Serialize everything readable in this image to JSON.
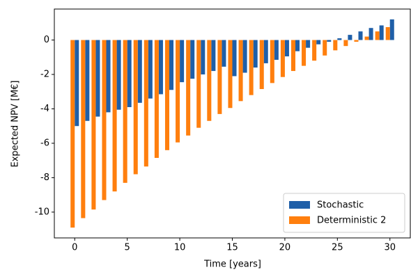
{
  "chart_data": {
    "type": "bar",
    "xlabel": "Time [years]",
    "ylabel": "Expected NPV [M€]",
    "x": [
      0,
      1,
      2,
      3,
      4,
      5,
      6,
      7,
      8,
      9,
      10,
      11,
      12,
      13,
      14,
      15,
      16,
      17,
      18,
      19,
      20,
      21,
      22,
      23,
      24,
      25,
      26,
      27,
      28,
      29,
      30
    ],
    "series": [
      {
        "name": "Stochastic",
        "color": "#1f5fa8",
        "values": [
          -5.0,
          -4.7,
          -4.45,
          -4.2,
          -4.05,
          -3.9,
          -3.65,
          -3.4,
          -3.15,
          -2.9,
          -2.45,
          -2.25,
          -2.0,
          -1.8,
          -1.55,
          -2.1,
          -1.9,
          -1.6,
          -1.35,
          -1.15,
          -0.95,
          -0.65,
          -0.45,
          -0.25,
          -0.1,
          0.1,
          0.3,
          0.5,
          0.7,
          0.85,
          1.2
        ]
      },
      {
        "name": "Deterministic 2",
        "color": "#ff7f0e",
        "values": [
          -10.9,
          -10.35,
          -9.85,
          -9.3,
          -8.8,
          -8.3,
          -7.8,
          -7.35,
          -6.85,
          -6.4,
          -5.95,
          -5.55,
          -5.1,
          -4.7,
          -4.3,
          -3.95,
          -3.55,
          -3.2,
          -2.85,
          -2.5,
          -2.15,
          -1.8,
          -1.5,
          -1.2,
          -0.9,
          -0.6,
          -0.35,
          -0.1,
          0.2,
          0.5,
          0.75
        ]
      }
    ],
    "xlim": [
      -1.94,
      31.94
    ],
    "xticks": [
      0,
      5,
      10,
      15,
      20,
      25,
      30
    ],
    "ylim": [
      -11.5,
      1.8
    ],
    "yticks": [
      -10,
      -8,
      -6,
      -4,
      -2,
      0
    ],
    "grid": false,
    "legend": "lower right"
  }
}
